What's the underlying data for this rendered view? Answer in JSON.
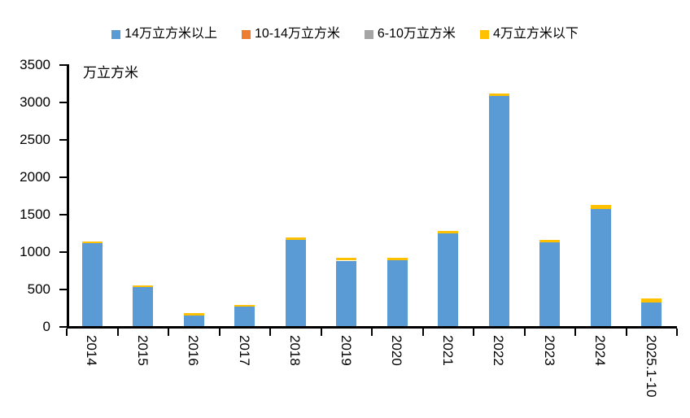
{
  "chart_data": {
    "type": "bar",
    "stacked": true,
    "title": "",
    "unit_label": "万立方米",
    "legend_position": "top",
    "grid": false,
    "categories": [
      "2014",
      "2015",
      "2016",
      "2017",
      "2018",
      "2019",
      "2020",
      "2021",
      "2022",
      "2023",
      "2024",
      "2025.1-10"
    ],
    "series": [
      {
        "name": "14万立方米以上",
        "color": "#5B9BD5",
        "values": [
          1105,
          520,
          145,
          257,
          1157,
          875,
          880,
          1238,
          3075,
          1116,
          1560,
          310
        ]
      },
      {
        "name": "10-14万立方米",
        "color": "#ED7D31",
        "values": [
          0,
          0,
          0,
          0,
          0,
          0,
          0,
          0,
          0,
          0,
          0,
          0
        ]
      },
      {
        "name": "6-10万立方米",
        "color": "#A5A5A5",
        "values": [
          0,
          0,
          0,
          0,
          0,
          0,
          0,
          0,
          0,
          0,
          0,
          0
        ]
      },
      {
        "name": "4万立方米以下",
        "color": "#FFC000",
        "values": [
          25,
          25,
          30,
          28,
          33,
          35,
          35,
          32,
          35,
          34,
          55,
          60
        ]
      }
    ],
    "ylabel": "",
    "xlabel": "",
    "ylim": [
      0,
      3500
    ],
    "ytick_step": 500,
    "yticks": [
      0,
      500,
      1000,
      1500,
      2000,
      2500,
      3000,
      3500
    ],
    "axis_color": "#000000",
    "text_color": "#000000"
  }
}
